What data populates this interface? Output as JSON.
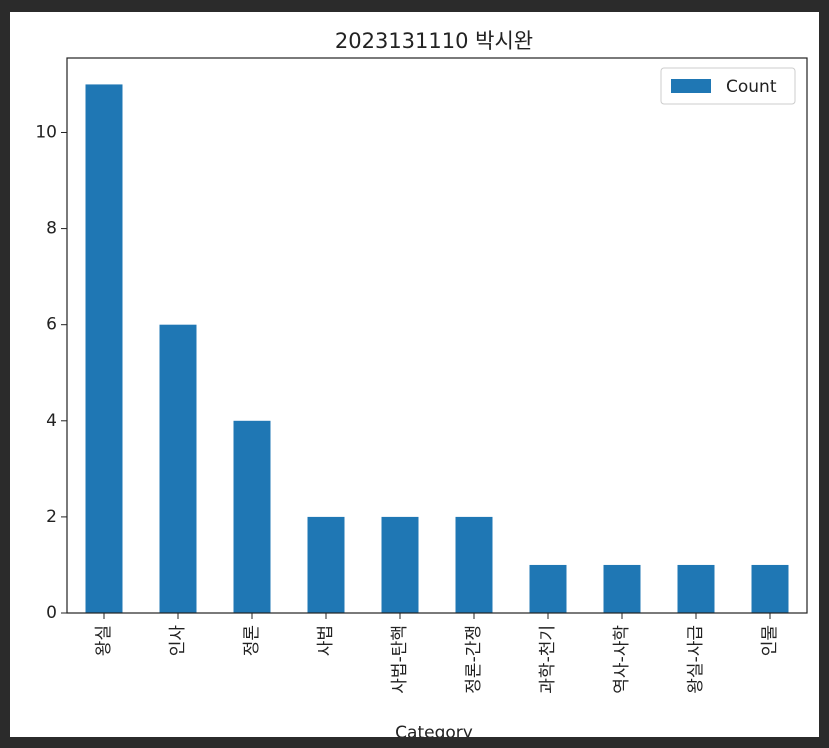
{
  "chart_data": {
    "type": "bar",
    "title": "2023131110 박시완",
    "xlabel": "Category",
    "ylabel": "",
    "categories": [
      "왕실",
      "인사",
      "정론",
      "사법",
      "사법-탄핵",
      "정론-간쟁",
      "과학-천기",
      "역사-사학",
      "왕실-사급",
      "인물"
    ],
    "series": [
      {
        "name": "Count",
        "values": [
          11,
          6,
          4,
          2,
          2,
          2,
          1,
          1,
          1,
          1
        ]
      }
    ],
    "ylim": [
      0,
      11.55
    ],
    "yticks": [
      0,
      2,
      4,
      6,
      8,
      10
    ],
    "legend_position": "top-right",
    "grid": false,
    "colors": {
      "bar": "#1f77b4",
      "axis": "#222222"
    }
  }
}
